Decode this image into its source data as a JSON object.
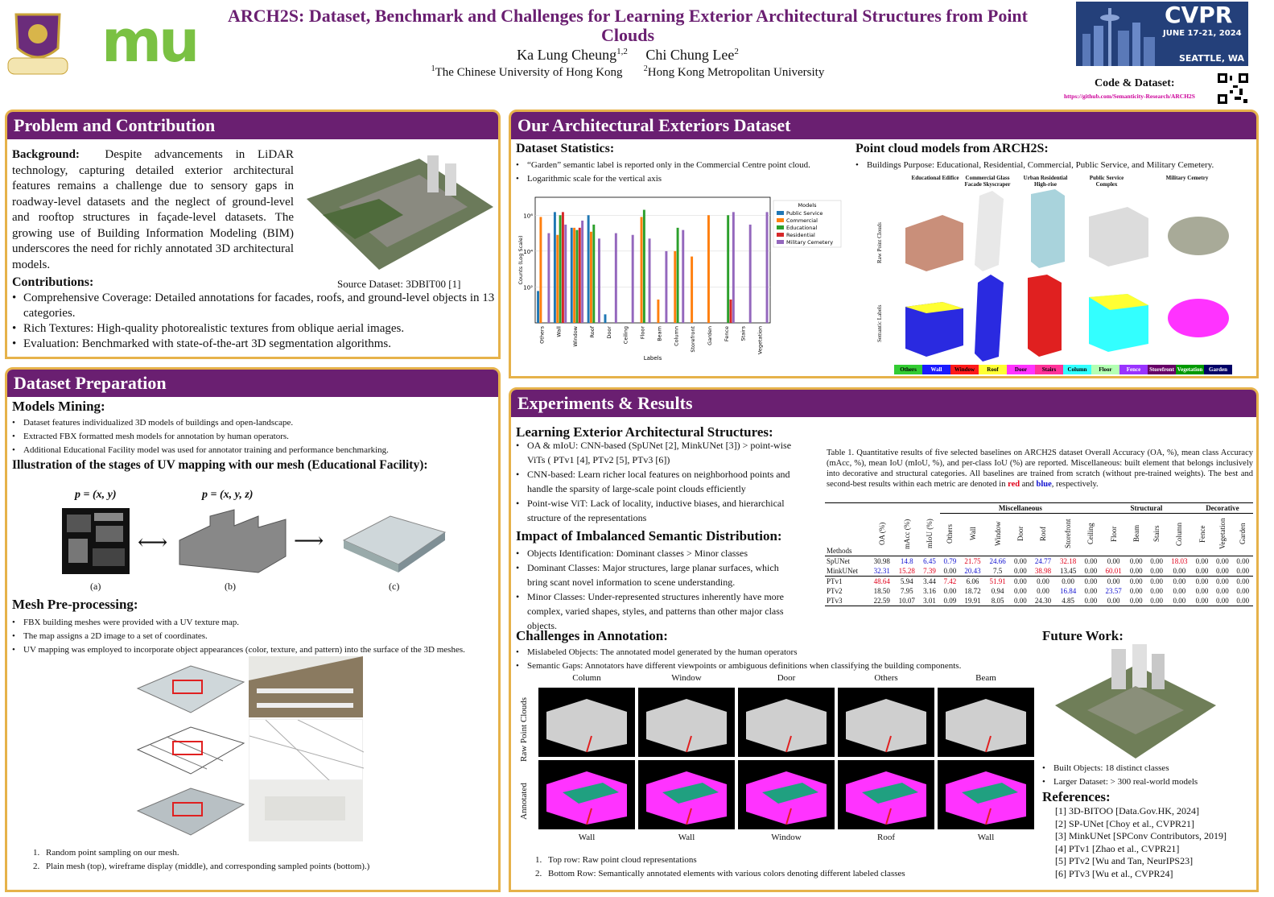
{
  "header": {
    "title": "ARCH2S: Dataset, Benchmark and Challenges for Learning Exterior Architectural Structures from Point Clouds",
    "author1": "Ka Lung Cheung",
    "author1_sup": "1,2",
    "author2": "Chi Chung Lee",
    "author2_sup": "2",
    "aff1_sup": "1",
    "aff1": "The Chinese University of Hong Kong",
    "aff2_sup": "2",
    "aff2": "Hong Kong Metropolitan University",
    "mu_logo": "mu",
    "cvpr": "CVPR",
    "cvpr_dates": "JUNE 17-21, 2024",
    "cvpr_place": "SEATTLE, WA",
    "code_label": "Code & Dataset:",
    "code_url": "https://github.com/Semanticity-Research/ARCH2S"
  },
  "problem": {
    "title": "Problem and Contribution",
    "bg_label": "Background:",
    "bg_text": "Despite advancements in LiDAR technology, capturing detailed exterior architectural features remains a challenge due to sensory gaps in roadway-level datasets and the neglect of ground-level and rooftop structures in façade-level datasets. The growing use of Building Information Modeling (BIM) underscores the need for richly annotated 3D architectural models.",
    "source": "Source Dataset: 3DBIT00 [1]",
    "contrib_label": "Contributions:",
    "contribs": [
      "Comprehensive Coverage: Detailed annotations for facades, roofs, and ground-level objects in 13 categories.",
      "Rich Textures: High-quality photorealistic textures from oblique aerial images.",
      "Evaluation: Benchmarked with state-of-the-art 3D segmentation algorithms."
    ]
  },
  "prep": {
    "title": "Dataset Preparation",
    "mining_label": "Models Mining:",
    "mining": [
      "Dataset features individualized 3D models of buildings and open-landscape.",
      "Extracted FBX formatted mesh models for annotation by human operators.",
      "Additional Educational Facility model was used for annotator training and performance benchmarking."
    ],
    "uv_label": "Illustration of the stages of UV mapping with our mesh (Educational Facility):",
    "eq_a": "p = (x, y)",
    "eq_b": "p = (x, y, z)",
    "cap_a": "(a)",
    "cap_b": "(b)",
    "cap_c": "(c)",
    "mesh_label": "Mesh Pre-processing:",
    "mesh": [
      "FBX building meshes were provided with a UV texture map.",
      "The map assigns a 2D image to a set of coordinates.",
      "UV mapping was employed to incorporate object appearances (color, texture, and pattern) into the surface of the 3D meshes."
    ],
    "notes": [
      {
        "n": "1.",
        "t": "Random point sampling on our mesh."
      },
      {
        "n": "2.",
        "t": "Plain mesh (top), wireframe display (middle), and corresponding sampled points (bottom).)"
      }
    ]
  },
  "dataset": {
    "title": "Our Architectural Exteriors Dataset",
    "stats_label": "Dataset Statistics:",
    "stats": [
      "“Garden” semantic label is reported only in the Commercial Centre point cloud.",
      "Logarithmic scale for the vertical axis"
    ],
    "models_label": "Point cloud models from ARCH2S:",
    "models_bullet": "Buildings Purpose: Educational, Residential, Commercial, Public Service, and Military Cemetery.",
    "cols": [
      "Educational Edifice",
      "Commercial Glass Facade Skyscraper",
      "Urban Residential High-rise",
      "Public Service Complex",
      "Military Cemetry"
    ],
    "row_raw": "Raw Point Clouds",
    "row_sem": "Semantic Labels",
    "legend": [
      {
        "t": "Others",
        "c": "#33cc33"
      },
      {
        "t": "Wall",
        "c": "#1a1aff"
      },
      {
        "t": "Window",
        "c": "#ff1a1a"
      },
      {
        "t": "Roof",
        "c": "#ffff33"
      },
      {
        "t": "Door",
        "c": "#ff33ff"
      },
      {
        "t": "Stairs",
        "c": "#ff3399"
      },
      {
        "t": "Column",
        "c": "#33ffff"
      },
      {
        "t": "Floor",
        "c": "#b3ffb3"
      },
      {
        "t": "Fence",
        "c": "#9933ff"
      },
      {
        "t": "Storefront",
        "c": "#660066"
      },
      {
        "t": "Vegetation",
        "c": "#009900"
      },
      {
        "t": "Garden",
        "c": "#000066"
      }
    ]
  },
  "chart_data": {
    "type": "bar",
    "title": "",
    "xlabel": "Labels",
    "ylabel": "Counts (Log Scale)",
    "log_y": true,
    "categories": [
      "Others",
      "Wall",
      "Window",
      "Roof",
      "Door",
      "Ceiling",
      "Floor",
      "Beam",
      "Column",
      "Storefront",
      "Garden",
      "Fence",
      "Stairs",
      "Vegetation"
    ],
    "ytick_labels": [
      "10⁶",
      "10⁴",
      "10²"
    ],
    "legend_title": "Models",
    "legend_position": "top-right",
    "series": [
      {
        "name": "Public Service",
        "color": "#1f77b4",
        "values": [
          60,
          1500000,
          200000,
          1000000,
          3,
          0,
          0,
          0,
          0,
          0,
          0,
          0,
          0,
          0
        ]
      },
      {
        "name": "Commercial",
        "color": "#ff7f0e",
        "values": [
          800000,
          80000,
          200000,
          120000,
          0,
          0,
          800000,
          20,
          10000,
          5000,
          1000000,
          0,
          0,
          0
        ]
      },
      {
        "name": "Educational",
        "color": "#2ca02c",
        "values": [
          0,
          1000000,
          150000,
          300000,
          0,
          0,
          2000000,
          0,
          200000,
          0,
          0,
          1000000,
          0,
          0
        ]
      },
      {
        "name": "Residential",
        "color": "#d62728",
        "values": [
          0,
          1500000,
          200000,
          0,
          0,
          0,
          0,
          0,
          0,
          0,
          0,
          20,
          0,
          0
        ]
      },
      {
        "name": "Military Cemetery",
        "color": "#9467bd",
        "values": [
          100000,
          300000,
          500000,
          50000,
          100000,
          80000,
          50000,
          10000,
          150000,
          0,
          0,
          1500000,
          300000,
          1500000
        ]
      }
    ],
    "ylim": [
      1,
      10000000
    ]
  },
  "exp": {
    "title": "Experiments & Results",
    "learn_label": "Learning Exterior Architectural Structures:",
    "learn": [
      "OA & mIoU: CNN-based (SpUNet [2], MinkUNet [3]) > point-wise ViTs ( PTv1 [4], PTv2 [5], PTv3 [6])",
      "CNN-based: Learn richer local features on neighborhood points and handle the sparsity of large-scale point clouds efficiently",
      "Point-wise ViT: Lack of locality, inductive biases, and hierarchical structure of the representations"
    ],
    "imb_label": "Impact of Imbalanced Semantic Distribution:",
    "imb": [
      "Objects Identification: Dominant classes > Minor classes",
      "Dominant Classes: Major structures, large planar surfaces, which bring scant novel information to scene understanding.",
      "Minor Classes: Under-represented structures inherently have more complex, varied shapes, styles, and patterns than other major class objects."
    ],
    "caption_pre": "Table 1. Quantitative results of five selected baselines on ARCH2S dataset Overall Accuracy (OA, %), mean class Accuracy (mAcc, %), mean IoU (mIoU, %), and per-class IoU (%) are reported. Miscellaneous: built element that belongs inclusively into decorative and structural categories. All baselines are trained from scratch (without pre-trained weights). The best and second-best results within each metric are denoted in ",
    "caption_red": "red",
    "caption_and": " and ",
    "caption_blue": "blue",
    "caption_end": ", respectively.",
    "table": {
      "groups": [
        {
          "t": "Miscellaneous",
          "span": 7
        },
        {
          "t": "Structural",
          "span": 4
        },
        {
          "t": "Decorative",
          "span": 3
        }
      ],
      "methods_label": "Methods",
      "cols": [
        "OA (%)",
        "mAcc (%)",
        "mIoU (%)",
        "Others",
        "Wall",
        "Window",
        "Door",
        "Roof",
        "Storefront",
        "Ceiling",
        "Floor",
        "Beam",
        "Stairs",
        "Column",
        "Fence",
        "Vegetation",
        "Garden"
      ],
      "rows": [
        {
          "m": "SpUNet",
          "v": [
            "30.98",
            "14.8",
            "6.45",
            "0.79",
            "21.75",
            "24.66",
            "0.00",
            "24.77",
            "32.18",
            "0.00",
            "0.00",
            "0.00",
            "0.00",
            "18.03",
            "0.00",
            "0.00",
            "0.00"
          ],
          "s": [
            "",
            "b",
            "b",
            "b",
            "r",
            "b",
            "",
            "b",
            "r",
            "",
            "",
            "",
            "",
            "r",
            "",
            "",
            ""
          ]
        },
        {
          "m": "MinkUNet",
          "v": [
            "32.31",
            "15.28",
            "7.39",
            "0.00",
            "20.43",
            "7.5",
            "0.00",
            "38.98",
            "13.45",
            "0.00",
            "60.01",
            "0.00",
            "0.00",
            "0.00",
            "0.00",
            "0.00",
            "0.00"
          ],
          "s": [
            "b",
            "r",
            "r",
            "",
            "b",
            "",
            "",
            "r",
            "",
            "",
            "r",
            "",
            "",
            "",
            "",
            "",
            ""
          ]
        },
        {
          "m": "PTv1",
          "v": [
            "48.64",
            "5.94",
            "3.44",
            "7.42",
            "6.06",
            "51.91",
            "0.00",
            "0.00",
            "0.00",
            "0.00",
            "0.00",
            "0.00",
            "0.00",
            "0.00",
            "0.00",
            "0.00",
            "0.00"
          ],
          "s": [
            "r",
            "",
            "",
            "r",
            "",
            "r",
            "",
            "",
            "",
            "",
            "",
            "",
            "",
            "",
            "",
            "",
            ""
          ]
        },
        {
          "m": "PTv2",
          "v": [
            "18.50",
            "7.95",
            "3.16",
            "0.00",
            "18.72",
            "0.94",
            "0.00",
            "0.00",
            "16.84",
            "0.00",
            "23.57",
            "0.00",
            "0.00",
            "0.00",
            "0.00",
            "0.00",
            "0.00"
          ],
          "s": [
            "",
            "",
            "",
            "",
            "",
            "",
            "",
            "",
            "b",
            "",
            "b",
            "",
            "",
            "",
            "",
            "",
            ""
          ]
        },
        {
          "m": "PTv3",
          "v": [
            "22.59",
            "10.07",
            "3.01",
            "0.09",
            "19.91",
            "8.05",
            "0.00",
            "24.30",
            "4.85",
            "0.00",
            "0.00",
            "0.00",
            "0.00",
            "0.00",
            "0.00",
            "0.00",
            "0.00"
          ],
          "s": [
            "",
            "",
            "",
            "",
            "",
            "",
            "",
            "",
            "",
            "",
            "",
            "",
            "",
            "",
            "",
            "",
            ""
          ]
        }
      ]
    },
    "chal_label": "Challenges in Annotation:",
    "chal": [
      "Mislabeled Objects: The annotated model generated by the human operators",
      "Semantic Gaps: Annotators have different viewpoints or ambiguous definitions when classifying the building components."
    ],
    "chal_top": [
      "Column",
      "Window",
      "Door",
      "Others",
      "Beam"
    ],
    "chal_bottom": [
      "Wall",
      "Wall",
      "Window",
      "Roof",
      "Wall"
    ],
    "chal_row1": "Raw Point Clouds",
    "chal_row2": "Annotated",
    "chal_notes": [
      {
        "n": "1.",
        "t": "Top row: Raw point cloud representations"
      },
      {
        "n": "2.",
        "t": "Bottom Row: Semantically annotated elements with various colors denoting different labeled classes"
      }
    ],
    "future_label": "Future Work:",
    "future": [
      "Built Objects: 18 distinct classes",
      "Larger Dataset: > 300 real-world models"
    ],
    "refs_label": "References:",
    "refs": [
      {
        "n": "[1]",
        "t": "3D-BITOO [Data.Gov.HK, 2024]"
      },
      {
        "n": "[2]",
        "t": "SP-UNet [Choy et al., CVPR21]"
      },
      {
        "n": "[3]",
        "t": "MinkUNet [SPConv Contributors, 2019]"
      },
      {
        "n": "[4]",
        "t": "PTv1 [Zhao et al., CVPR21]"
      },
      {
        "n": "[5]",
        "t": "PTv2 [Wu and Tan, NeurIPS23]"
      },
      {
        "n": "[6]",
        "t": "PTv3 [Wu et al., CVPR24]"
      }
    ]
  }
}
